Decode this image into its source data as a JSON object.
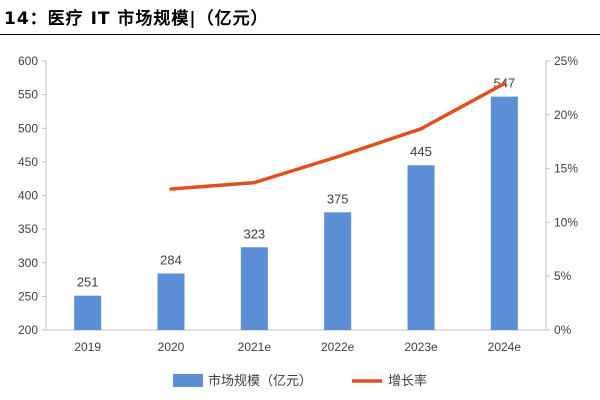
{
  "title": "14：医疗 IT 市场规模|（亿元）",
  "colors": {
    "bar": "#5B8FD6",
    "line": "#E0501E",
    "axis": "#BFBFBF",
    "text": "#404040"
  },
  "chart_data": {
    "type": "bar+line",
    "categories": [
      "2019",
      "2020",
      "2021e",
      "2022e",
      "2023e",
      "2024e"
    ],
    "series": [
      {
        "name": "市场规模（亿元）",
        "type": "bar",
        "axis": "left",
        "values": [
          251,
          284,
          323,
          375,
          445,
          547
        ]
      },
      {
        "name": "增长率",
        "type": "line",
        "axis": "right",
        "values": [
          null,
          13.1,
          13.7,
          16.1,
          18.7,
          22.9
        ]
      }
    ],
    "y_left": {
      "min": 200,
      "max": 600,
      "ticks": [
        "200",
        "250",
        "300",
        "350",
        "400",
        "450",
        "500",
        "550",
        "600"
      ]
    },
    "y_right": {
      "min": 0,
      "max": 25,
      "ticks": [
        "0%",
        "5%",
        "10%",
        "15%",
        "20%",
        "25%"
      ]
    },
    "legend_position": "bottom",
    "grid": false
  }
}
